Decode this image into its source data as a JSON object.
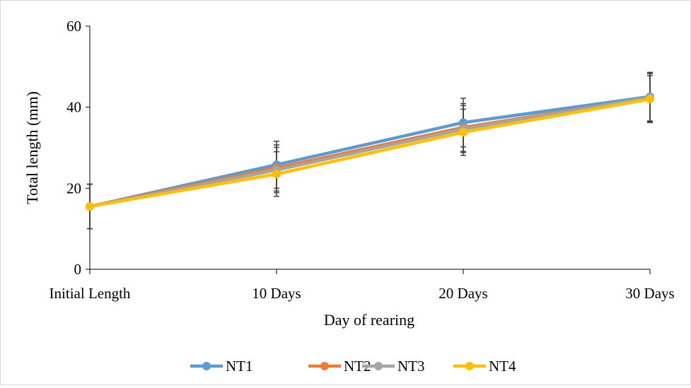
{
  "chart_data": {
    "type": "line",
    "title": "",
    "xlabel": "Day of rearing",
    "ylabel": "Total length (mm)",
    "categories": [
      "Initial Length",
      "10 Days",
      "20 Days",
      "30 Days"
    ],
    "ylim": [
      0,
      60
    ],
    "yticks": [
      "0",
      "20",
      "40",
      "60"
    ],
    "grid": false,
    "legend_position": "bottom",
    "error_bars": true,
    "series": [
      {
        "name": "NT1",
        "color": "#5b9bd5",
        "values": [
          15.5,
          25.8,
          36.2,
          42.6
        ],
        "errors": [
          5.5,
          5.8,
          6.0,
          6.0
        ]
      },
      {
        "name": "NT2",
        "color": "#ed7d31",
        "values": [
          15.5,
          25.0,
          35.0,
          42.3
        ],
        "errors": [
          5.5,
          5.7,
          5.9,
          6.0
        ]
      },
      {
        "name": "NT3",
        "color": "#a5a5a5",
        "values": [
          15.5,
          24.5,
          34.6,
          42.4
        ],
        "errors": [
          5.5,
          5.6,
          5.8,
          6.0
        ]
      },
      {
        "name": "NT4",
        "color": "#ffc000",
        "values": [
          15.5,
          23.5,
          33.8,
          42.0
        ],
        "errors": [
          5.5,
          5.5,
          5.7,
          5.8
        ]
      }
    ]
  }
}
